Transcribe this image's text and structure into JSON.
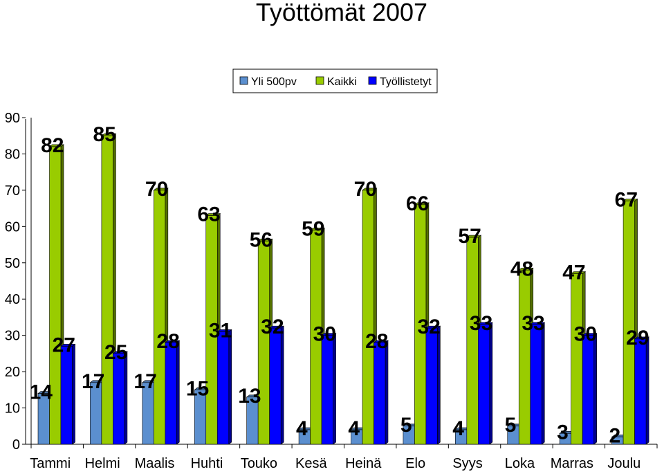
{
  "chart_data": {
    "type": "bar",
    "title": "Työttömät 2007",
    "categories": [
      "Tammi",
      "Helmi",
      "Maalis",
      "Huhti",
      "Touko",
      "Kesä",
      "Heinä",
      "Elo",
      "Syys",
      "Loka",
      "Marras",
      "Joulu"
    ],
    "series": [
      {
        "name": "Yli 500pv",
        "color": "#5b8fcf",
        "values": [
          14,
          17,
          17,
          15,
          13,
          4,
          4,
          5,
          4,
          5,
          3,
          2
        ]
      },
      {
        "name": "Kaikki",
        "color": "#99cc00",
        "values": [
          82,
          85,
          70,
          63,
          56,
          59,
          70,
          66,
          57,
          48,
          47,
          67
        ]
      },
      {
        "name": "Työllistetyt",
        "color": "#0000ff",
        "values": [
          27,
          25,
          28,
          31,
          32,
          30,
          28,
          32,
          33,
          33,
          30,
          29
        ]
      }
    ],
    "ylim": [
      0,
      90
    ],
    "yticks": [
      0,
      10,
      20,
      30,
      40,
      50,
      60,
      70,
      80,
      90
    ],
    "legend_position": "top-right",
    "grid": false
  }
}
